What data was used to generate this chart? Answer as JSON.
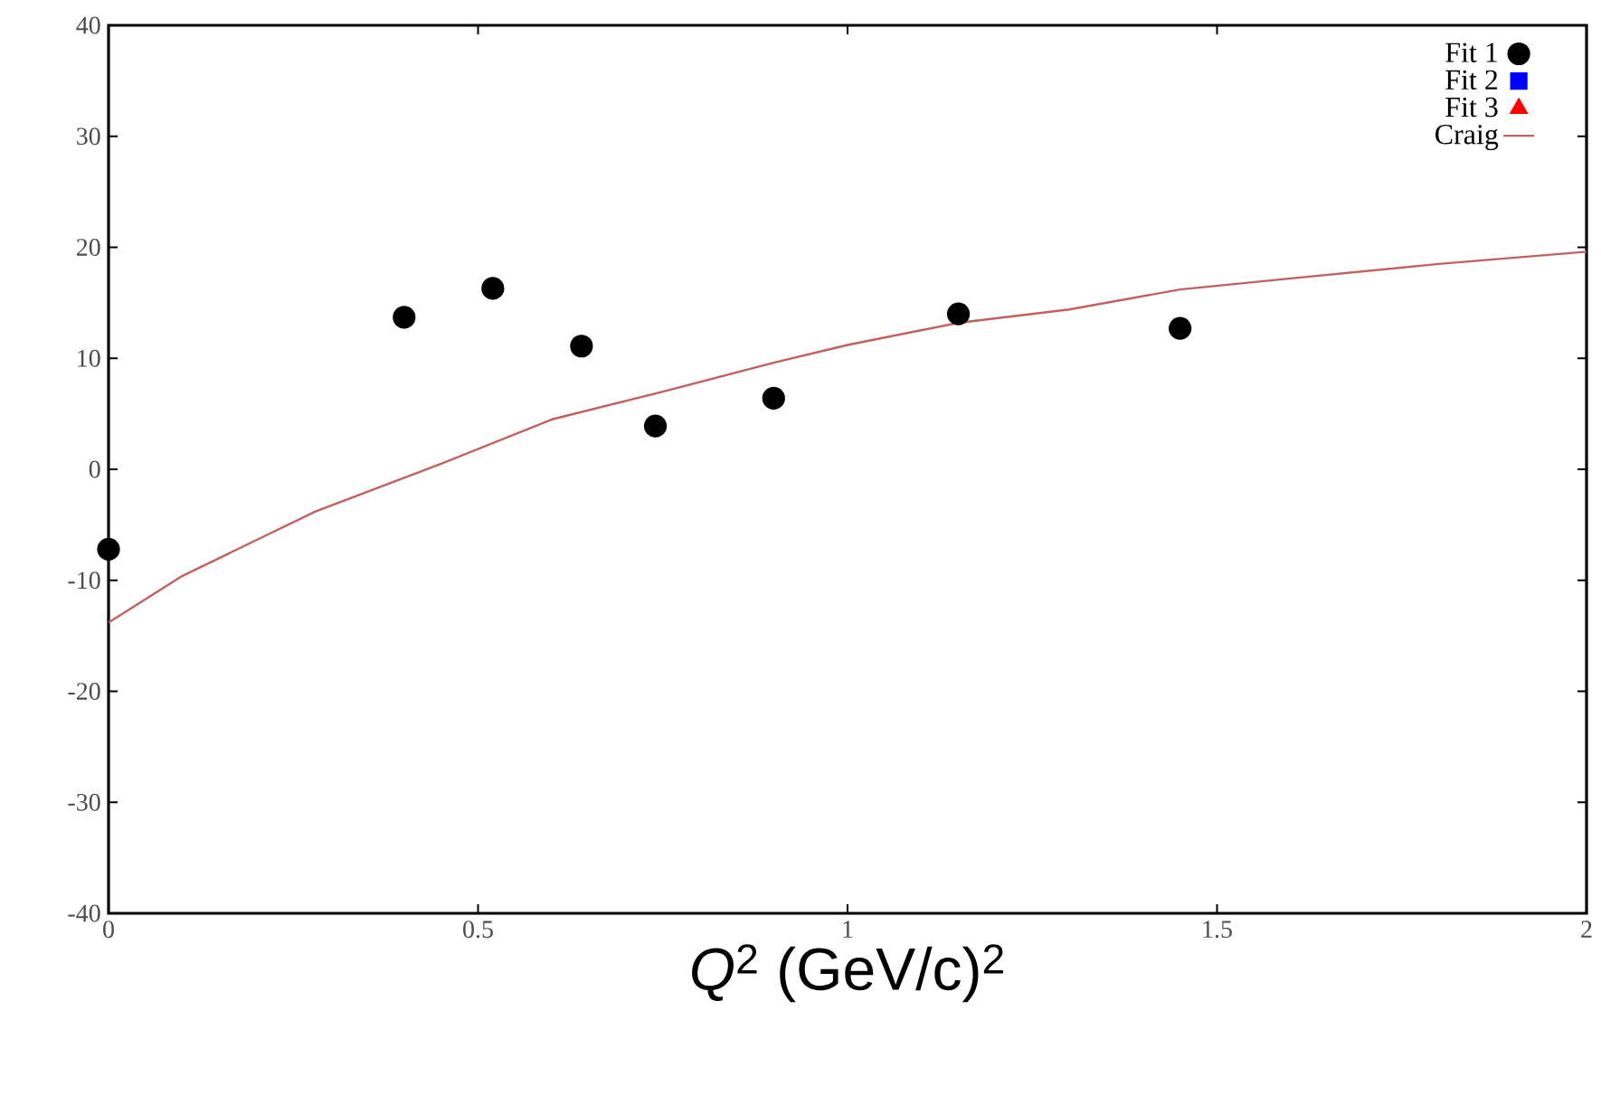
{
  "chart_data": {
    "type": "scatter",
    "xlabel": "*Q*$^{2}$ (GeV/c)$^{2}$",
    "xlim": [
      0,
      2
    ],
    "ylim": [
      -40,
      40
    ],
    "xticks": [
      0,
      0.5,
      1,
      1.5,
      2
    ],
    "yticks": [
      -40,
      -30,
      -20,
      -10,
      0,
      10,
      20,
      30,
      40
    ],
    "grid": false,
    "legend": "top right",
    "series": [
      {
        "name": "Fit 1",
        "color": "#000000",
        "marker": "circle",
        "x": [
          0,
          0.4,
          0.52,
          0.64,
          0.74,
          0.9,
          1.15,
          1.45
        ],
        "values": [
          -7.2,
          13.7,
          16.3,
          11.1,
          3.9,
          6.4,
          14.0,
          12.7
        ]
      },
      {
        "name": "Fit 2",
        "color": "#0000ff",
        "marker": "square"
      },
      {
        "name": "Fit 3",
        "color": "#ff0000",
        "marker": "triangle"
      },
      {
        "name": "Craig",
        "type": "line",
        "color": "#c06060",
        "marker": "none",
        "line_style": "solid",
        "x": [
          0,
          0.1,
          0.28,
          0.45,
          0.6,
          0.75,
          0.9,
          1.0,
          1.15,
          1.3,
          1.45,
          1.6,
          1.8,
          2.0
        ],
        "values": [
          -13.8,
          -9.6,
          -3.8,
          0.5,
          4.5,
          7.0,
          9.6,
          11.2,
          13.2,
          14.4,
          16.2,
          17.2,
          18.5,
          19.6
        ]
      }
    ]
  }
}
